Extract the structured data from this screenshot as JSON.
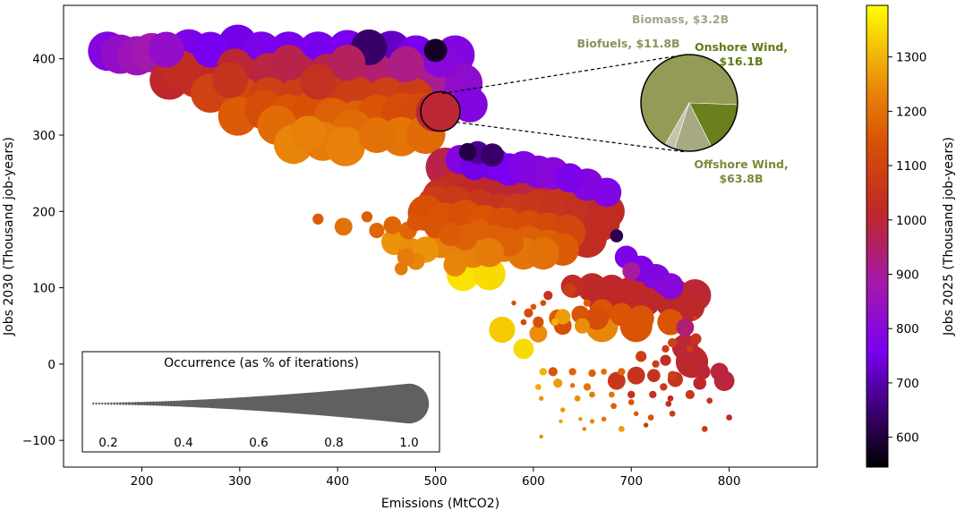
{
  "chart_data": {
    "type": "scatter",
    "xlabel": "Emissions (MtCO2)",
    "ylabel": "Jobs 2030 (Thousand job-years)",
    "xlim": [
      120,
      890
    ],
    "ylim": [
      -135,
      470
    ],
    "xticks": [
      200,
      300,
      400,
      500,
      600,
      700,
      800
    ],
    "yticks": [
      -100,
      0,
      100,
      200,
      300,
      400
    ],
    "grid": false,
    "colorbar": {
      "label": "Jobs 2025 (Thousand job-years)",
      "range": [
        545,
        1395
      ],
      "ticks": [
        600,
        700,
        800,
        900,
        1000,
        1100,
        1200,
        1300
      ],
      "colormap": "gnuplot"
    },
    "size_legend": {
      "title": "Occurrence (as % of iterations)",
      "ticks": [
        "0.2",
        "0.4",
        "0.6",
        "0.8",
        "1.0"
      ],
      "tick_values": [
        0.2,
        0.4,
        0.6,
        0.8,
        1.0
      ]
    },
    "points_note": "each point: [emissions, jobs_2030, jobs_2025, occurrence_fraction]",
    "points": [
      [
        165,
        410,
        790,
        0.95
      ],
      [
        178,
        406,
        830,
        0.95
      ],
      [
        195,
        404,
        860,
        0.95
      ],
      [
        210,
        408,
        880,
        0.95
      ],
      [
        225,
        412,
        830,
        0.9
      ],
      [
        248,
        413,
        770,
        0.95
      ],
      [
        270,
        412,
        760,
        0.9
      ],
      [
        298,
        419,
        750,
        0.95
      ],
      [
        322,
        410,
        770,
        0.95
      ],
      [
        350,
        410,
        760,
        0.95
      ],
      [
        380,
        410,
        760,
        0.95
      ],
      [
        410,
        412,
        760,
        0.95
      ],
      [
        432,
        415,
        640,
        0.9
      ],
      [
        455,
        411,
        720,
        0.95
      ],
      [
        480,
        405,
        760,
        0.95
      ],
      [
        505,
        399,
        800,
        0.9
      ],
      [
        500,
        411,
        580,
        0.7
      ],
      [
        520,
        405,
        790,
        0.95
      ],
      [
        528,
        368,
        820,
        0.95
      ],
      [
        535,
        340,
        790,
        0.9
      ],
      [
        515,
        350,
        830,
        0.95
      ],
      [
        228,
        372,
        1010,
        0.95
      ],
      [
        255,
        375,
        1040,
        0.95
      ],
      [
        280,
        380,
        1020,
        0.95
      ],
      [
        305,
        376,
        990,
        0.95
      ],
      [
        330,
        382,
        990,
        0.95
      ],
      [
        360,
        380,
        970,
        0.95
      ],
      [
        390,
        381,
        980,
        0.95
      ],
      [
        415,
        385,
        960,
        0.95
      ],
      [
        440,
        380,
        940,
        0.95
      ],
      [
        468,
        376,
        930,
        0.95
      ],
      [
        490,
        372,
        910,
        0.95
      ],
      [
        240,
        385,
        1030,
        0.95
      ],
      [
        295,
        390,
        1000,
        0.9
      ],
      [
        350,
        395,
        980,
        0.9
      ],
      [
        410,
        395,
        960,
        0.9
      ],
      [
        470,
        393,
        920,
        0.9
      ],
      [
        270,
        355,
        1100,
        0.95
      ],
      [
        300,
        352,
        1110,
        0.95
      ],
      [
        330,
        350,
        1090,
        0.95
      ],
      [
        360,
        350,
        1080,
        0.95
      ],
      [
        390,
        353,
        1070,
        0.95
      ],
      [
        420,
        351,
        1080,
        0.95
      ],
      [
        450,
        350,
        1090,
        0.95
      ],
      [
        478,
        349,
        1080,
        0.95
      ],
      [
        290,
        372,
        1050,
        0.9
      ],
      [
        380,
        370,
        1040,
        0.9
      ],
      [
        298,
        325,
        1160,
        0.95
      ],
      [
        325,
        333,
        1130,
        0.95
      ],
      [
        350,
        328,
        1150,
        0.95
      ],
      [
        375,
        333,
        1140,
        0.95
      ],
      [
        395,
        323,
        1170,
        0.95
      ],
      [
        420,
        320,
        1170,
        0.95
      ],
      [
        440,
        327,
        1150,
        0.95
      ],
      [
        465,
        330,
        1130,
        0.95
      ],
      [
        485,
        330,
        1120,
        0.95
      ],
      [
        338,
        313,
        1190,
        0.95
      ],
      [
        415,
        308,
        1190,
        0.95
      ],
      [
        355,
        288,
        1240,
        0.95
      ],
      [
        385,
        292,
        1220,
        0.95
      ],
      [
        408,
        285,
        1230,
        0.95
      ],
      [
        465,
        298,
        1210,
        0.95
      ],
      [
        490,
        301,
        1190,
        0.95
      ],
      [
        370,
        302,
        1230,
        0.9
      ],
      [
        440,
        300,
        1200,
        0.9
      ],
      [
        500,
        330,
        1000,
        0.95
      ],
      [
        533,
        278,
        610,
        0.6
      ],
      [
        543,
        277,
        680,
        0.7
      ],
      [
        558,
        274,
        640,
        0.7
      ],
      [
        525,
        268,
        790,
        0.8
      ],
      [
        540,
        260,
        750,
        0.8
      ],
      [
        560,
        262,
        770,
        0.85
      ],
      [
        575,
        255,
        760,
        0.85
      ],
      [
        590,
        258,
        780,
        0.85
      ],
      [
        605,
        252,
        790,
        0.85
      ],
      [
        620,
        250,
        800,
        0.85
      ],
      [
        637,
        244,
        770,
        0.8
      ],
      [
        655,
        235,
        790,
        0.85
      ],
      [
        675,
        225,
        780,
        0.8
      ],
      [
        510,
        258,
        980,
        0.95
      ],
      [
        530,
        250,
        1000,
        0.95
      ],
      [
        548,
        248,
        990,
        0.95
      ],
      [
        570,
        246,
        970,
        0.95
      ],
      [
        590,
        242,
        960,
        0.95
      ],
      [
        608,
        240,
        950,
        0.95
      ],
      [
        628,
        232,
        940,
        0.95
      ],
      [
        645,
        228,
        930,
        0.95
      ],
      [
        505,
        220,
        1040,
        0.9
      ],
      [
        520,
        226,
        1030,
        0.95
      ],
      [
        540,
        228,
        1020,
        0.95
      ],
      [
        560,
        224,
        1010,
        0.95
      ],
      [
        580,
        220,
        1000,
        0.95
      ],
      [
        600,
        218,
        990,
        0.95
      ],
      [
        620,
        215,
        980,
        0.95
      ],
      [
        640,
        212,
        970,
        0.95
      ],
      [
        660,
        208,
        960,
        0.95
      ],
      [
        500,
        210,
        1080,
        0.9
      ],
      [
        520,
        210,
        1070,
        0.9
      ],
      [
        545,
        205,
        1060,
        0.9
      ],
      [
        565,
        200,
        1050,
        0.9
      ],
      [
        585,
        200,
        1070,
        0.9
      ],
      [
        605,
        205,
        1060,
        0.9
      ],
      [
        625,
        208,
        1050,
        0.9
      ],
      [
        650,
        205,
        1040,
        0.9
      ],
      [
        675,
        200,
        1020,
        0.9
      ],
      [
        670,
        185,
        1030,
        0.9
      ],
      [
        490,
        198,
        1140,
        0.9
      ],
      [
        510,
        188,
        1150,
        0.9
      ],
      [
        530,
        192,
        1140,
        0.9
      ],
      [
        550,
        185,
        1150,
        0.9
      ],
      [
        570,
        182,
        1140,
        0.9
      ],
      [
        595,
        178,
        1130,
        0.9
      ],
      [
        615,
        175,
        1120,
        0.9
      ],
      [
        635,
        172,
        1110,
        0.9
      ],
      [
        655,
        165,
        1030,
        0.95
      ],
      [
        685,
        168,
        620,
        0.5
      ],
      [
        380,
        190,
        1160,
        0.45
      ],
      [
        406,
        180,
        1200,
        0.6
      ],
      [
        430,
        193,
        1170,
        0.45
      ],
      [
        440,
        175,
        1180,
        0.55
      ],
      [
        456,
        182,
        1180,
        0.6
      ],
      [
        472,
        175,
        1180,
        0.6
      ],
      [
        480,
        186,
        1150,
        0.6
      ],
      [
        500,
        180,
        1150,
        0.7
      ],
      [
        515,
        170,
        1160,
        0.7
      ],
      [
        530,
        166,
        1170,
        0.75
      ],
      [
        545,
        170,
        1170,
        0.8
      ],
      [
        560,
        163,
        1170,
        0.8
      ],
      [
        575,
        160,
        1170,
        0.8
      ],
      [
        595,
        160,
        1170,
        0.85
      ],
      [
        615,
        155,
        1170,
        0.85
      ],
      [
        630,
        150,
        1160,
        0.85
      ],
      [
        458,
        160,
        1260,
        0.75
      ],
      [
        475,
        148,
        1250,
        0.75
      ],
      [
        490,
        150,
        1260,
        0.75
      ],
      [
        505,
        158,
        1230,
        0.8
      ],
      [
        520,
        152,
        1230,
        0.8
      ],
      [
        538,
        145,
        1230,
        0.8
      ],
      [
        555,
        146,
        1220,
        0.8
      ],
      [
        570,
        155,
        1220,
        0.85
      ],
      [
        590,
        145,
        1210,
        0.85
      ],
      [
        610,
        145,
        1200,
        0.85
      ],
      [
        480,
        135,
        1240,
        0.6
      ],
      [
        470,
        140,
        1220,
        0.6
      ],
      [
        520,
        130,
        1240,
        0.7
      ],
      [
        465,
        125,
        1220,
        0.5
      ],
      [
        528,
        117,
        1360,
        0.85
      ],
      [
        555,
        118,
        1350,
        0.85
      ],
      [
        695,
        140,
        770,
        0.7
      ],
      [
        710,
        125,
        780,
        0.75
      ],
      [
        725,
        112,
        790,
        0.8
      ],
      [
        740,
        102,
        800,
        0.75
      ],
      [
        700,
        122,
        900,
        0.6
      ],
      [
        640,
        102,
        1030,
        0.7
      ],
      [
        660,
        100,
        1020,
        0.8
      ],
      [
        680,
        98,
        1010,
        0.8
      ],
      [
        700,
        96,
        1010,
        0.8
      ],
      [
        720,
        98,
        1020,
        0.85
      ],
      [
        745,
        92,
        1010,
        0.8
      ],
      [
        765,
        90,
        1000,
        0.85
      ],
      [
        670,
        80,
        1010,
        0.75
      ],
      [
        690,
        78,
        1020,
        0.75
      ],
      [
        715,
        82,
        1010,
        0.8
      ],
      [
        740,
        80,
        1010,
        0.8
      ],
      [
        760,
        75,
        1010,
        0.8
      ],
      [
        637,
        97,
        1080,
        0.5
      ],
      [
        615,
        90,
        1050,
        0.4
      ],
      [
        595,
        67,
        1130,
        0.4
      ],
      [
        605,
        55,
        1140,
        0.45
      ],
      [
        625,
        60,
        1160,
        0.6
      ],
      [
        648,
        65,
        1150,
        0.6
      ],
      [
        670,
        70,
        1150,
        0.7
      ],
      [
        690,
        65,
        1150,
        0.7
      ],
      [
        710,
        60,
        1150,
        0.75
      ],
      [
        630,
        50,
        1140,
        0.6
      ],
      [
        665,
        60,
        1130,
        0.7
      ],
      [
        705,
        50,
        1150,
        0.85
      ],
      [
        740,
        55,
        1150,
        0.75
      ],
      [
        590,
        55,
        1130,
        0.3
      ],
      [
        600,
        75,
        1150,
        0.3
      ],
      [
        580,
        80,
        1130,
        0.25
      ],
      [
        610,
        80,
        1140,
        0.3
      ],
      [
        655,
        80,
        1160,
        0.35
      ],
      [
        765,
        60,
        1100,
        0.2
      ],
      [
        568,
        45,
        1330,
        0.75
      ],
      [
        590,
        20,
        1350,
        0.65
      ],
      [
        605,
        40,
        1250,
        0.6
      ],
      [
        622,
        55,
        1300,
        0.35
      ],
      [
        650,
        50,
        1250,
        0.55
      ],
      [
        670,
        50,
        1240,
        0.85
      ],
      [
        630,
        62,
        1270,
        0.55
      ],
      [
        755,
        48,
        940,
        0.6
      ],
      [
        755,
        22,
        1000,
        0.75
      ],
      [
        762,
        3,
        1010,
        0.85
      ],
      [
        790,
        -10,
        990,
        0.6
      ],
      [
        795,
        -22,
        990,
        0.65
      ],
      [
        773,
        -10,
        1000,
        0.55
      ],
      [
        723,
        -15,
        1040,
        0.5
      ],
      [
        745,
        -20,
        1050,
        0.55
      ],
      [
        735,
        5,
        1030,
        0.45
      ],
      [
        705,
        -15,
        1050,
        0.6
      ],
      [
        685,
        -22,
        1060,
        0.6
      ],
      [
        700,
        -40,
        1040,
        0.35
      ],
      [
        722,
        -40,
        1050,
        0.35
      ],
      [
        738,
        -52,
        1040,
        0.3
      ],
      [
        760,
        -40,
        1060,
        0.4
      ],
      [
        780,
        -48,
        1050,
        0.3
      ],
      [
        800,
        -70,
        1030,
        0.3
      ],
      [
        775,
        -85,
        1080,
        0.3
      ],
      [
        742,
        -65,
        1080,
        0.3
      ],
      [
        715,
        -80,
        1070,
        0.25
      ],
      [
        740,
        -45,
        1020,
        0.3
      ],
      [
        770,
        -25,
        1010,
        0.5
      ],
      [
        742,
        28,
        1090,
        0.4
      ],
      [
        760,
        20,
        1080,
        0.35
      ],
      [
        766,
        33,
        1050,
        0.45
      ],
      [
        735,
        20,
        1080,
        0.35
      ],
      [
        710,
        10,
        1090,
        0.45
      ],
      [
        725,
        0,
        1080,
        0.35
      ],
      [
        742,
        -15,
        1080,
        0.4
      ],
      [
        733,
        -30,
        1070,
        0.35
      ],
      [
        620,
        -10,
        1150,
        0.4
      ],
      [
        640,
        -10,
        1180,
        0.35
      ],
      [
        660,
        -12,
        1170,
        0.35
      ],
      [
        672,
        -10,
        1190,
        0.3
      ],
      [
        690,
        -10,
        1180,
        0.35
      ],
      [
        682,
        -55,
        1170,
        0.3
      ],
      [
        700,
        -50,
        1150,
        0.3
      ],
      [
        705,
        -65,
        1160,
        0.25
      ],
      [
        720,
        -70,
        1150,
        0.3
      ],
      [
        640,
        -28,
        1200,
        0.25
      ],
      [
        655,
        -30,
        1210,
        0.35
      ],
      [
        660,
        -40,
        1220,
        0.3
      ],
      [
        680,
        -40,
        1210,
        0.3
      ],
      [
        672,
        -72,
        1200,
        0.25
      ],
      [
        652,
        -85,
        1220,
        0.2
      ],
      [
        610,
        -10,
        1300,
        0.35
      ],
      [
        625,
        -25,
        1270,
        0.4
      ],
      [
        645,
        -45,
        1250,
        0.3
      ],
      [
        605,
        -30,
        1290,
        0.3
      ],
      [
        630,
        -60,
        1260,
        0.25
      ],
      [
        608,
        -45,
        1260,
        0.25
      ],
      [
        628,
        -75,
        1280,
        0.2
      ],
      [
        648,
        -72,
        1260,
        0.2
      ],
      [
        660,
        -75,
        1250,
        0.25
      ],
      [
        690,
        -85,
        1270,
        0.3
      ],
      [
        608,
        -95,
        1250,
        0.2
      ]
    ],
    "highlight": {
      "x": 505,
      "y": 331,
      "jobs_2025": 1000
    },
    "pie": {
      "values": [
        63.8,
        16.1,
        11.8,
        3.2
      ],
      "labels": [
        "Offshore Wind,\n$63.8B",
        "Onshore Wind,\n$16.1B",
        "Biofuels, $11.8B",
        "Biomass, $3.2B"
      ],
      "colors": [
        "#949b57",
        "#6b7f1f",
        "#a7a982",
        "#c4c3ac"
      ],
      "label_colors": [
        "#7a8a3a",
        "#5f7a16",
        "#8c9158",
        "#a2a588"
      ]
    }
  }
}
